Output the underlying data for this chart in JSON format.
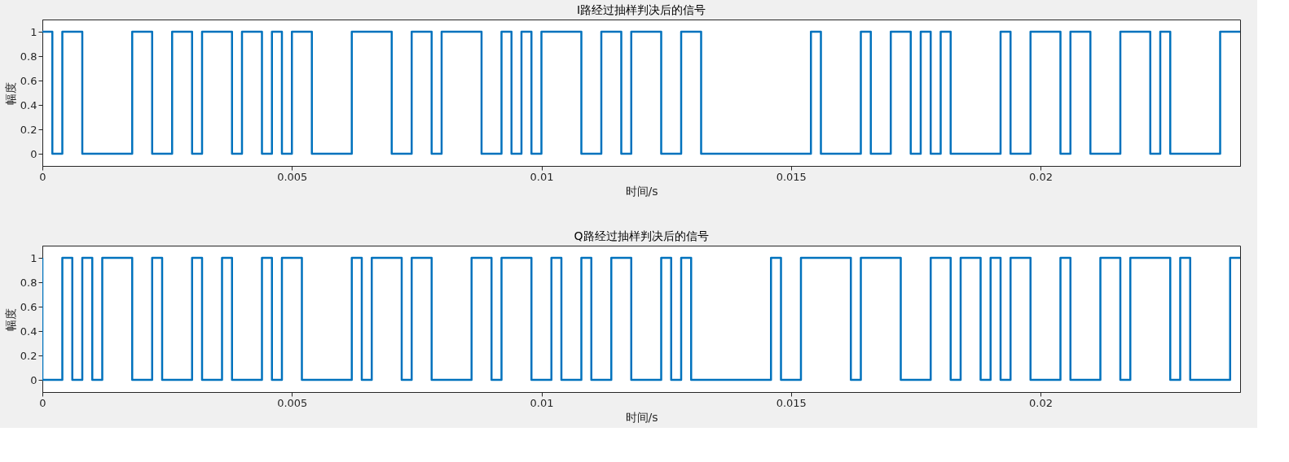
{
  "chart_data": [
    {
      "type": "step",
      "title": "I路经过抽样判决后的信号",
      "xlabel": "时间/s",
      "ylabel": "幅度",
      "color": "#0072bd",
      "grid": false,
      "line_style": "solid",
      "x": [
        0,
        0.0002,
        0.0004,
        0.0008,
        0.0018,
        0.0022,
        0.0026,
        0.003,
        0.0032,
        0.0038,
        0.004,
        0.0044,
        0.0046,
        0.0048,
        0.005,
        0.0054,
        0.0062,
        0.007,
        0.0074,
        0.0078,
        0.008,
        0.0088,
        0.0092,
        0.0094,
        0.0096,
        0.0098,
        0.01,
        0.0108,
        0.0112,
        0.0116,
        0.0118,
        0.0124,
        0.0128,
        0.0132,
        0.0154,
        0.0156,
        0.0164,
        0.0166,
        0.017,
        0.0174,
        0.0176,
        0.0178,
        0.018,
        0.0182,
        0.0192,
        0.0194,
        0.0198,
        0.0204,
        0.0206,
        0.021,
        0.0216,
        0.0222,
        0.0224,
        0.0226,
        0.0236,
        0.024
      ],
      "values": [
        1,
        0,
        1,
        0,
        1,
        0,
        1,
        0,
        1,
        0,
        1,
        0,
        1,
        0,
        1,
        0,
        1,
        0,
        1,
        0,
        1,
        0,
        1,
        0,
        1,
        0,
        1,
        0,
        1,
        0,
        1,
        0,
        1,
        0,
        1,
        0,
        1,
        0,
        1,
        0,
        1,
        0,
        1,
        0,
        1,
        0,
        1,
        0,
        1,
        0,
        1,
        0,
        1,
        0,
        1,
        1
      ],
      "xlim": [
        0,
        0.024
      ],
      "xticks": [
        0,
        0.005,
        0.01,
        0.015,
        0.02
      ],
      "ylim": [
        -0.1,
        1.1
      ],
      "yticks": [
        0,
        0.2,
        0.4,
        0.6,
        0.8,
        1
      ]
    },
    {
      "type": "step",
      "title": "Q路经过抽样判决后的信号",
      "xlabel": "时间/s",
      "ylabel": "幅度",
      "color": "#0072bd",
      "grid": false,
      "line_style": "solid",
      "x": [
        0,
        0,
        0.0004,
        0.0006,
        0.0008,
        0.001,
        0.0012,
        0.0018,
        0.0022,
        0.0024,
        0.003,
        0.0032,
        0.0036,
        0.0038,
        0.0044,
        0.0046,
        0.0048,
        0.0052,
        0.0062,
        0.0064,
        0.0066,
        0.0072,
        0.0074,
        0.0078,
        0.0086,
        0.009,
        0.0092,
        0.0098,
        0.0102,
        0.0104,
        0.0108,
        0.011,
        0.0114,
        0.0118,
        0.0124,
        0.0126,
        0.0128,
        0.013,
        0.0146,
        0.0148,
        0.0152,
        0.0162,
        0.0164,
        0.0172,
        0.0178,
        0.0182,
        0.0184,
        0.0188,
        0.019,
        0.0192,
        0.0194,
        0.0198,
        0.0204,
        0.0206,
        0.0212,
        0.0216,
        0.0218,
        0.0226,
        0.0228,
        0.023,
        0.0238,
        0.024
      ],
      "values": [
        1,
        0,
        1,
        0,
        1,
        0,
        1,
        0,
        1,
        0,
        1,
        0,
        1,
        0,
        1,
        0,
        1,
        0,
        1,
        0,
        1,
        0,
        1,
        0,
        1,
        0,
        1,
        0,
        1,
        0,
        1,
        0,
        1,
        0,
        1,
        0,
        1,
        0,
        1,
        0,
        1,
        0,
        1,
        0,
        1,
        0,
        1,
        0,
        1,
        0,
        1,
        0,
        1,
        0,
        1,
        0,
        1,
        0,
        1,
        0,
        1,
        1
      ],
      "xlim": [
        0,
        0.024
      ],
      "xticks": [
        0,
        0.005,
        0.01,
        0.015,
        0.02
      ],
      "ylim": [
        -0.1,
        1.1
      ],
      "yticks": [
        0,
        0.2,
        0.4,
        0.6,
        0.8,
        1
      ]
    }
  ]
}
